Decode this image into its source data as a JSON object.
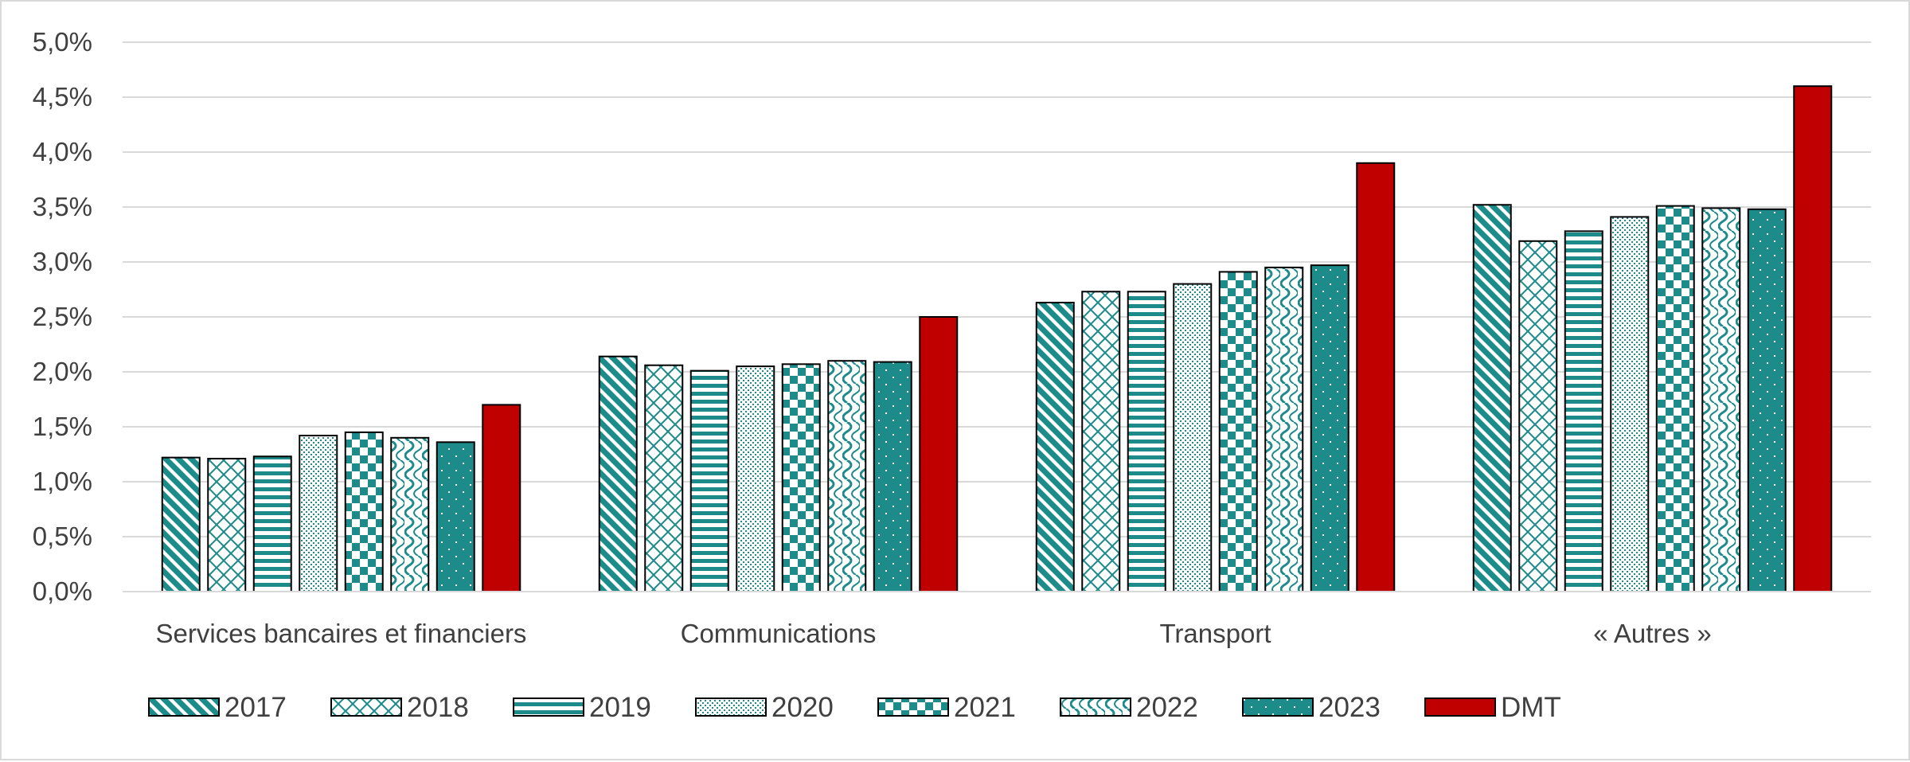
{
  "chart_data": {
    "type": "bar",
    "categories": [
      "Services bancaires et financiers",
      "Communications",
      "Transport",
      "« Autres »"
    ],
    "series": [
      {
        "name": "2017",
        "pattern": "diagonal",
        "values": [
          1.22,
          2.14,
          2.63,
          3.52
        ]
      },
      {
        "name": "2018",
        "pattern": "diamond",
        "values": [
          1.21,
          2.06,
          2.73,
          3.19
        ]
      },
      {
        "name": "2019",
        "pattern": "horizontal",
        "values": [
          1.23,
          2.01,
          2.73,
          3.28
        ]
      },
      {
        "name": "2020",
        "pattern": "dotted",
        "values": [
          1.42,
          2.05,
          2.8,
          3.41
        ]
      },
      {
        "name": "2021",
        "pattern": "checker",
        "values": [
          1.45,
          2.07,
          2.91,
          3.51
        ]
      },
      {
        "name": "2022",
        "pattern": "wave",
        "values": [
          1.4,
          2.1,
          2.95,
          3.49
        ]
      },
      {
        "name": "2023",
        "pattern": "solid-dots",
        "values": [
          1.36,
          2.09,
          2.97,
          3.48
        ]
      },
      {
        "name": "DMT",
        "pattern": "solid",
        "values": [
          1.7,
          2.5,
          3.9,
          4.6
        ]
      }
    ],
    "y_ticks": [
      "0,0%",
      "0,5%",
      "1,0%",
      "1,5%",
      "2,0%",
      "2,5%",
      "3,0%",
      "3,5%",
      "4,0%",
      "4,5%",
      "5,0%"
    ],
    "ylim": [
      0,
      5
    ],
    "ylabel": "",
    "xlabel": "",
    "grid": true,
    "legend_position": "bottom",
    "colors": {
      "teal": "#1e8b8b",
      "dmt": "#c00000",
      "grid": "#d9d9d9",
      "text": "#404040"
    }
  }
}
